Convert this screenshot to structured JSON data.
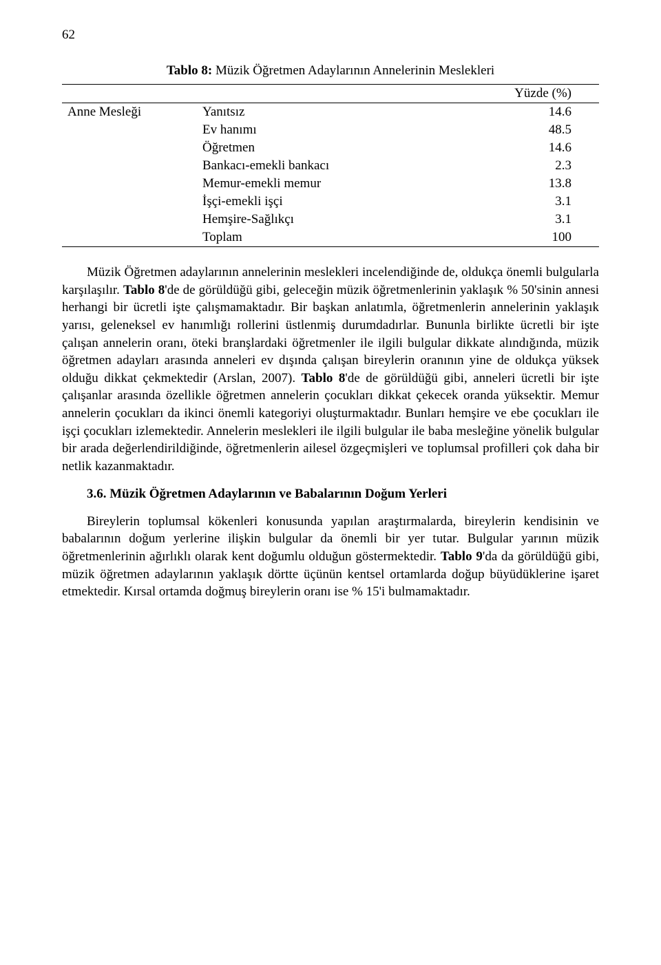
{
  "page_number": "62",
  "table": {
    "caption_prefix": "Tablo 8:",
    "caption_text": " Müzik Öğretmen Adaylarının Annelerinin Meslekleri",
    "col_header_label": "Anne Mesleği",
    "col_header_value": "Yüzde (%)",
    "rows": [
      {
        "label": "Yanıtsız",
        "value": "14.6"
      },
      {
        "label": "Ev hanımı",
        "value": "48.5"
      },
      {
        "label": "Öğretmen",
        "value": "14.6"
      },
      {
        "label": "Bankacı-emekli bankacı",
        "value": "2.3"
      },
      {
        "label": "Memur-emekli memur",
        "value": "13.8"
      },
      {
        "label": "İşçi-emekli işçi",
        "value": "3.1"
      },
      {
        "label": "Hemşire-Sağlıkçı",
        "value": "3.1"
      },
      {
        "label": "Toplam",
        "value": "100"
      }
    ]
  },
  "para1": {
    "t1": "Müzik Öğretmen adaylarının annelerinin meslekleri incelendiğinde de, oldukça önemli bulgularla karşılaşılır. ",
    "b1": "Tablo 8",
    "t2": "'de de görüldüğü gibi, geleceğin müzik öğretmenlerinin yaklaşık % 50'sinin annesi herhangi bir ücretli işte çalışmamaktadır. Bir başkan anlatımla, öğretmenlerin annelerinin yaklaşık yarısı, geleneksel ev hanımlığı rollerini üstlenmiş durumdadırlar. Bununla birlikte ücretli bir işte çalışan annelerin oranı, öteki branşlardaki öğretmenler ile ilgili bulgular dikkate alındığında, müzik öğretmen adayları arasında anneleri ev dışında çalışan bireylerin oranının yine de oldukça yüksek olduğu dikkat çekmektedir (Arslan, 2007). ",
    "b2": "Tablo 8",
    "t3": "'de de görüldüğü gibi, anneleri ücretli bir işte çalışanlar arasında özellikle öğretmen annelerin çocukları dikkat çekecek oranda yüksektir. Memur annelerin çocukları da ikinci önemli kategoriyi oluşturmaktadır. Bunları hemşire ve ebe çocukları ile işçi çocukları izlemektedir. Annelerin meslekleri ile ilgili bulgular ile baba mesleğine yönelik bulgular bir arada değerlendirildiğinde, öğretmenlerin ailesel özgeçmişleri ve toplumsal profilleri çok daha bir netlik kazanmaktadır."
  },
  "section_heading": "3.6. Müzik Öğretmen Adaylarının ve Babalarının Doğum Yerleri",
  "para2": {
    "t1": "Bireylerin toplumsal kökenleri konusunda yapılan araştırmalarda, bireylerin kendisinin ve babalarının doğum yerlerine ilişkin bulgular da önemli bir yer tutar. Bulgular yarının müzik öğretmenlerinin ağırlıklı olarak kent doğumlu olduğun göstermektedir. ",
    "b1": "Tablo 9",
    "t2": "'da da görüldüğü gibi, müzik öğretmen adaylarının yaklaşık dörtte üçünün kentsel ortamlarda doğup büyüdüklerine işaret etmektedir. Kırsal ortamda doğmuş bireylerin oranı ise % 15'i bulmamaktadır."
  }
}
